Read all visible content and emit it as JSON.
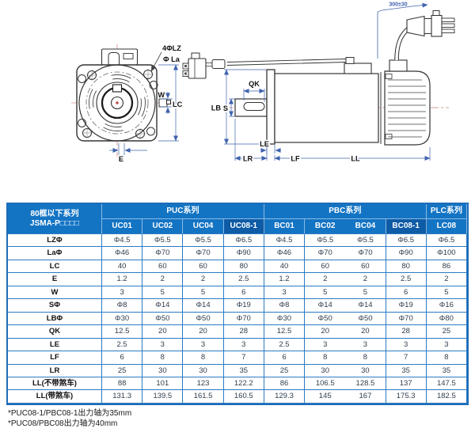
{
  "diagram": {
    "labels": {
      "holes": "4ΦLZ",
      "la": "Φ La",
      "w": "W",
      "lc": "LC",
      "e": "E",
      "qk": "QK",
      "lb": "LB",
      "s": "S",
      "le": "LE",
      "lr": "LR",
      "lf": "LF",
      "ll": "LL",
      "cable": "300±30"
    }
  },
  "table": {
    "corner_header": {
      "line1": "80框以下系列",
      "line2": "JSMA-P□□□□"
    },
    "series_groups": [
      {
        "label": "PUC系列",
        "span": 4
      },
      {
        "label": "PBC系列",
        "span": 4
      },
      {
        "label": "PLC系列",
        "span": 1
      }
    ],
    "models": [
      "UC01",
      "UC02",
      "UC04",
      "UC08-1",
      "BC01",
      "BC02",
      "BC04",
      "BC08-1",
      "LC08"
    ],
    "highlighted_models": [
      "UC08-1",
      "BC08-1"
    ],
    "rows": [
      {
        "label": "LZΦ",
        "values": [
          "Φ4.5",
          "Φ5.5",
          "Φ5.5",
          "Φ6.5",
          "Φ4.5",
          "Φ5.5",
          "Φ5.5",
          "Φ6.5",
          "Φ6.5"
        ]
      },
      {
        "label": "LaΦ",
        "values": [
          "Φ46",
          "Φ70",
          "Φ70",
          "Φ90",
          "Φ46",
          "Φ70",
          "Φ70",
          "Φ90",
          "Φ100"
        ]
      },
      {
        "label": "LC",
        "values": [
          "40",
          "60",
          "60",
          "80",
          "40",
          "60",
          "60",
          "80",
          "86"
        ]
      },
      {
        "label": "E",
        "values": [
          "1.2",
          "2",
          "2",
          "2.5",
          "1.2",
          "2",
          "2",
          "2.5",
          "2"
        ]
      },
      {
        "label": "W",
        "values": [
          "3",
          "5",
          "5",
          "6",
          "3",
          "5",
          "5",
          "6",
          "5"
        ]
      },
      {
        "label": "SΦ",
        "values": [
          "Φ8",
          "Φ14",
          "Φ14",
          "Φ19",
          "Φ8",
          "Φ14",
          "Φ14",
          "Φ19",
          "Φ16"
        ]
      },
      {
        "label": "LBΦ",
        "values": [
          "Φ30",
          "Φ50",
          "Φ50",
          "Φ70",
          "Φ30",
          "Φ50",
          "Φ50",
          "Φ70",
          "Φ80"
        ]
      },
      {
        "label": "QK",
        "values": [
          "12.5",
          "20",
          "20",
          "28",
          "12.5",
          "20",
          "20",
          "28",
          "25"
        ]
      },
      {
        "label": "LE",
        "values": [
          "2.5",
          "3",
          "3",
          "3",
          "2.5",
          "3",
          "3",
          "3",
          "3"
        ]
      },
      {
        "label": "LF",
        "values": [
          "6",
          "8",
          "8",
          "7",
          "6",
          "8",
          "8",
          "7",
          "8"
        ]
      },
      {
        "label": "LR",
        "values": [
          "25",
          "30",
          "30",
          "35",
          "25",
          "30",
          "30",
          "35",
          "35"
        ]
      },
      {
        "label": "LL(不带煞车)",
        "values": [
          "88",
          "101",
          "123",
          "122.2",
          "86",
          "106.5",
          "128.5",
          "137",
          "147.5"
        ]
      },
      {
        "label": "LL(带煞车)",
        "values": [
          "131.3",
          "139.5",
          "161.5",
          "160.5",
          "129.3",
          "145",
          "167",
          "175.3",
          "182.5"
        ]
      }
    ]
  },
  "footnotes": [
    "*PUC08-1/PBC08-1出力轴为35mm",
    "*PUC08/PBC08出力轴为40mm"
  ],
  "colors": {
    "header_blue": "#1474c4",
    "header_dark_blue": "#0e5ba6",
    "grid_blue": "#2b7bc4",
    "outer_border": "#1e6cb8",
    "dimension_line": "#3f63ae",
    "centerline_red": "#d98f8a",
    "value_text": "#2f3e4e"
  }
}
